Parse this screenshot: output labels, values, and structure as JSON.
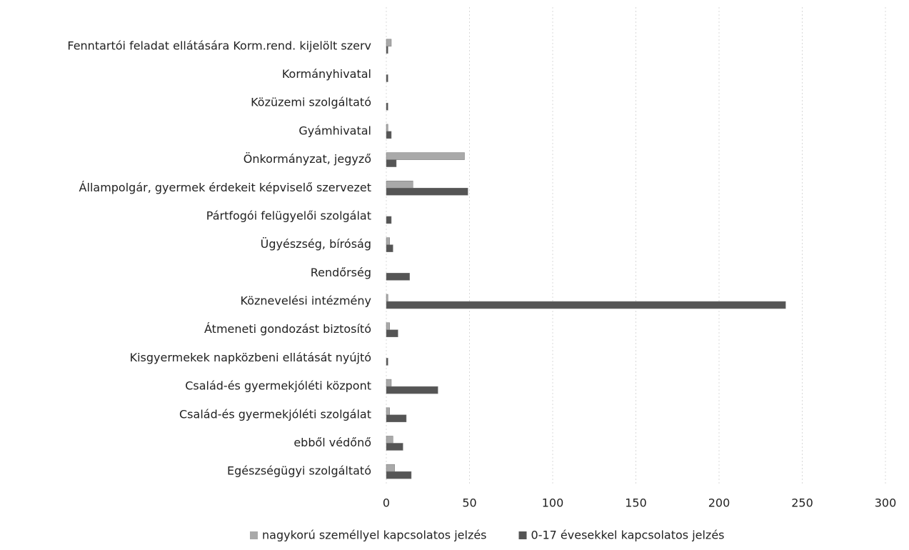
{
  "chart_data": {
    "type": "barh",
    "categories": [
      "Fenntartói feladat ellátására Korm.rend. kijelölt szerv",
      "Kormányhivatal",
      "Közüzemi szolgáltató",
      "Gyámhivatal",
      "Önkormányzat, jegyző",
      "Állampolgár, gyermek érdekeit képviselő szervezet",
      "Pártfogói felügyelői szolgálat",
      "Ügyészség, bíróság",
      "Rendőrség",
      "Köznevelési intézmény",
      "Átmeneti gondozást biztosító",
      "Kisgyermekek napközbeni ellátását nyújtó",
      "Család-és gyermekjóléti központ",
      "Család-és gyermekjóléti szolgálat",
      "ebből védőnő",
      "Egészségügyi szolgáltató"
    ],
    "series": [
      {
        "name": "nagykorú személlyel kapcsolatos jelzés",
        "color": "#a9a9a9",
        "values": [
          3,
          0,
          0,
          1,
          47,
          16,
          0,
          2,
          0,
          1,
          2,
          0,
          3,
          2,
          4,
          5
        ]
      },
      {
        "name": "0-17 évesekkel kapcsolatos jelzés",
        "color": "#555555",
        "values": [
          1,
          1,
          1,
          3,
          6,
          49,
          3,
          4,
          14,
          240,
          7,
          1,
          31,
          12,
          10,
          15
        ]
      }
    ],
    "xlim": [
      0,
      300
    ],
    "xticks": [
      0,
      50,
      100,
      150,
      200,
      250,
      300
    ],
    "grid": true,
    "legend": "bottom"
  }
}
